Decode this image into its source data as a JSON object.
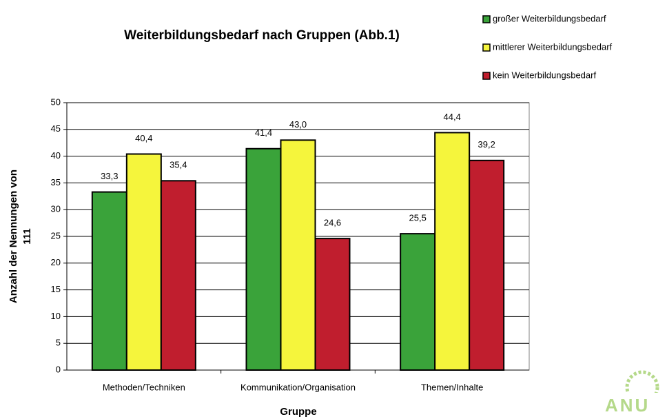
{
  "chart_data": {
    "type": "bar",
    "title": "Weiterbildungsbedarf nach Gruppen (Abb.1)",
    "x_label": "Gruppe",
    "y_label": [
      "Anzahl der Nennungen von",
      "111"
    ],
    "categories": [
      "Methoden/Techniken",
      "Kommunikation/Organisation",
      "Themen/Inhalte"
    ],
    "series": [
      {
        "name": "großer Weiterbildungsbedarf",
        "color": "#3aa33a",
        "values": [
          33.3,
          41.4,
          25.5
        ],
        "value_labels": [
          "33,3",
          "41,4",
          "25,5"
        ]
      },
      {
        "name": "mittlerer Weiterbildungsbedarf",
        "color": "#f5f53c",
        "values": [
          40.4,
          43.0,
          44.4
        ],
        "value_labels": [
          "40,4",
          "43,0",
          "44,4"
        ]
      },
      {
        "name": "kein Weiterbildungsbedarf",
        "color": "#c01e2e",
        "values": [
          35.4,
          24.6,
          39.2
        ],
        "value_labels": [
          "35,4",
          "24,6",
          "39,2"
        ]
      }
    ],
    "ylim": [
      0,
      50
    ],
    "yticks": [
      0,
      5,
      10,
      15,
      20,
      25,
      30,
      35,
      40,
      45,
      50
    ],
    "grid": true
  },
  "logo": "ANU"
}
